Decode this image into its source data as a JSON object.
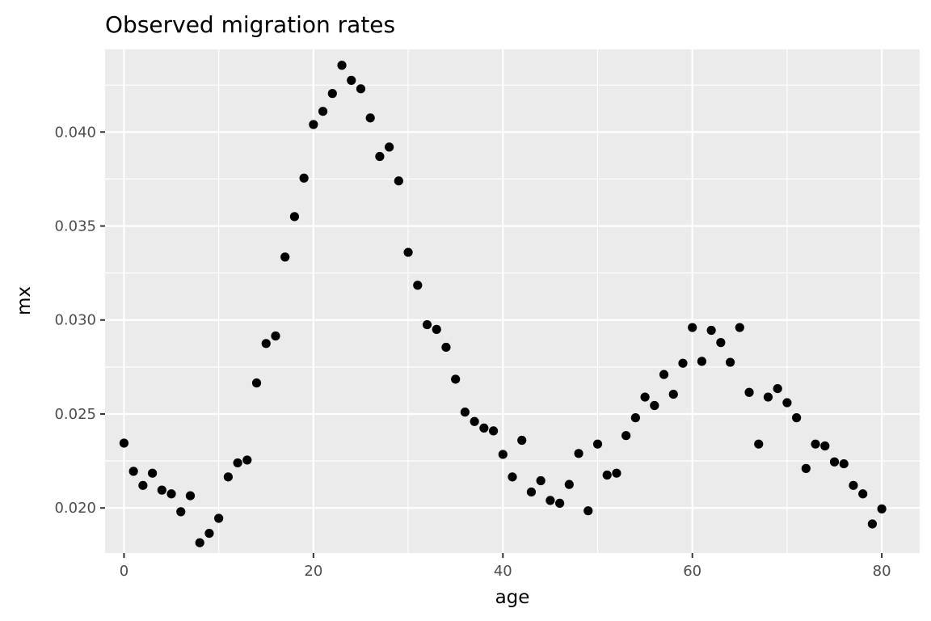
{
  "chart_data": {
    "type": "scatter",
    "title": "Observed migration rates",
    "xlabel": "age",
    "ylabel": "mx",
    "xlim": [
      -2,
      84
    ],
    "ylim": [
      0.0176,
      0.0444
    ],
    "x_ticks": [
      0,
      20,
      40,
      60,
      80
    ],
    "x_tick_labels": [
      "0",
      "20",
      "40",
      "60",
      "80"
    ],
    "y_ticks": [
      0.02,
      0.025,
      0.03,
      0.035,
      0.04
    ],
    "y_tick_labels": [
      "0.020",
      "0.025",
      "0.030",
      "0.035",
      "0.040"
    ],
    "grid": true,
    "legend": "none",
    "colors": {
      "panel": "#ebebeb",
      "grid": "#ffffff",
      "point": "#000000"
    },
    "series": [
      {
        "x": [
          0,
          1,
          2,
          3,
          4,
          5,
          6,
          7,
          8,
          9,
          10,
          11,
          12,
          13,
          14,
          15,
          16,
          17,
          18,
          19,
          20,
          21,
          22,
          23,
          24,
          25,
          26,
          27,
          28,
          29,
          30,
          31,
          32,
          33,
          34,
          35,
          36,
          37,
          38,
          39,
          40,
          41,
          42,
          43,
          44,
          45,
          46,
          47,
          48,
          49,
          50,
          51,
          52,
          53,
          54,
          55,
          56,
          57,
          58,
          59,
          60,
          61,
          62,
          63,
          64,
          65,
          66,
          67,
          68,
          69,
          70,
          71,
          72,
          73,
          74,
          75,
          76,
          77,
          78,
          79,
          80
        ],
        "y": [
          0.02345,
          0.02195,
          0.0212,
          0.02185,
          0.02095,
          0.02075,
          0.0198,
          0.02065,
          0.01815,
          0.01865,
          0.01945,
          0.02165,
          0.0224,
          0.02255,
          0.02665,
          0.02875,
          0.02915,
          0.03335,
          0.0355,
          0.03755,
          0.0404,
          0.0411,
          0.04205,
          0.04355,
          0.04275,
          0.0423,
          0.04075,
          0.0387,
          0.0392,
          0.0374,
          0.0336,
          0.03185,
          0.02975,
          0.0295,
          0.02855,
          0.02685,
          0.0251,
          0.0246,
          0.02425,
          0.0241,
          0.02285,
          0.02165,
          0.0236,
          0.02085,
          0.02145,
          0.0204,
          0.02025,
          0.02125,
          0.0229,
          0.01985,
          0.0234,
          0.02175,
          0.02185,
          0.02385,
          0.0248,
          0.0259,
          0.02545,
          0.0271,
          0.02605,
          0.0277,
          0.0296,
          0.0278,
          0.02945,
          0.0288,
          0.02775,
          0.0296,
          0.02615,
          0.0234,
          0.0259,
          0.02635,
          0.0256,
          0.0248,
          0.0221,
          0.0234,
          0.0233,
          0.02245,
          0.02235,
          0.0212,
          0.02075,
          0.01915,
          0.01995
        ]
      }
    ]
  }
}
